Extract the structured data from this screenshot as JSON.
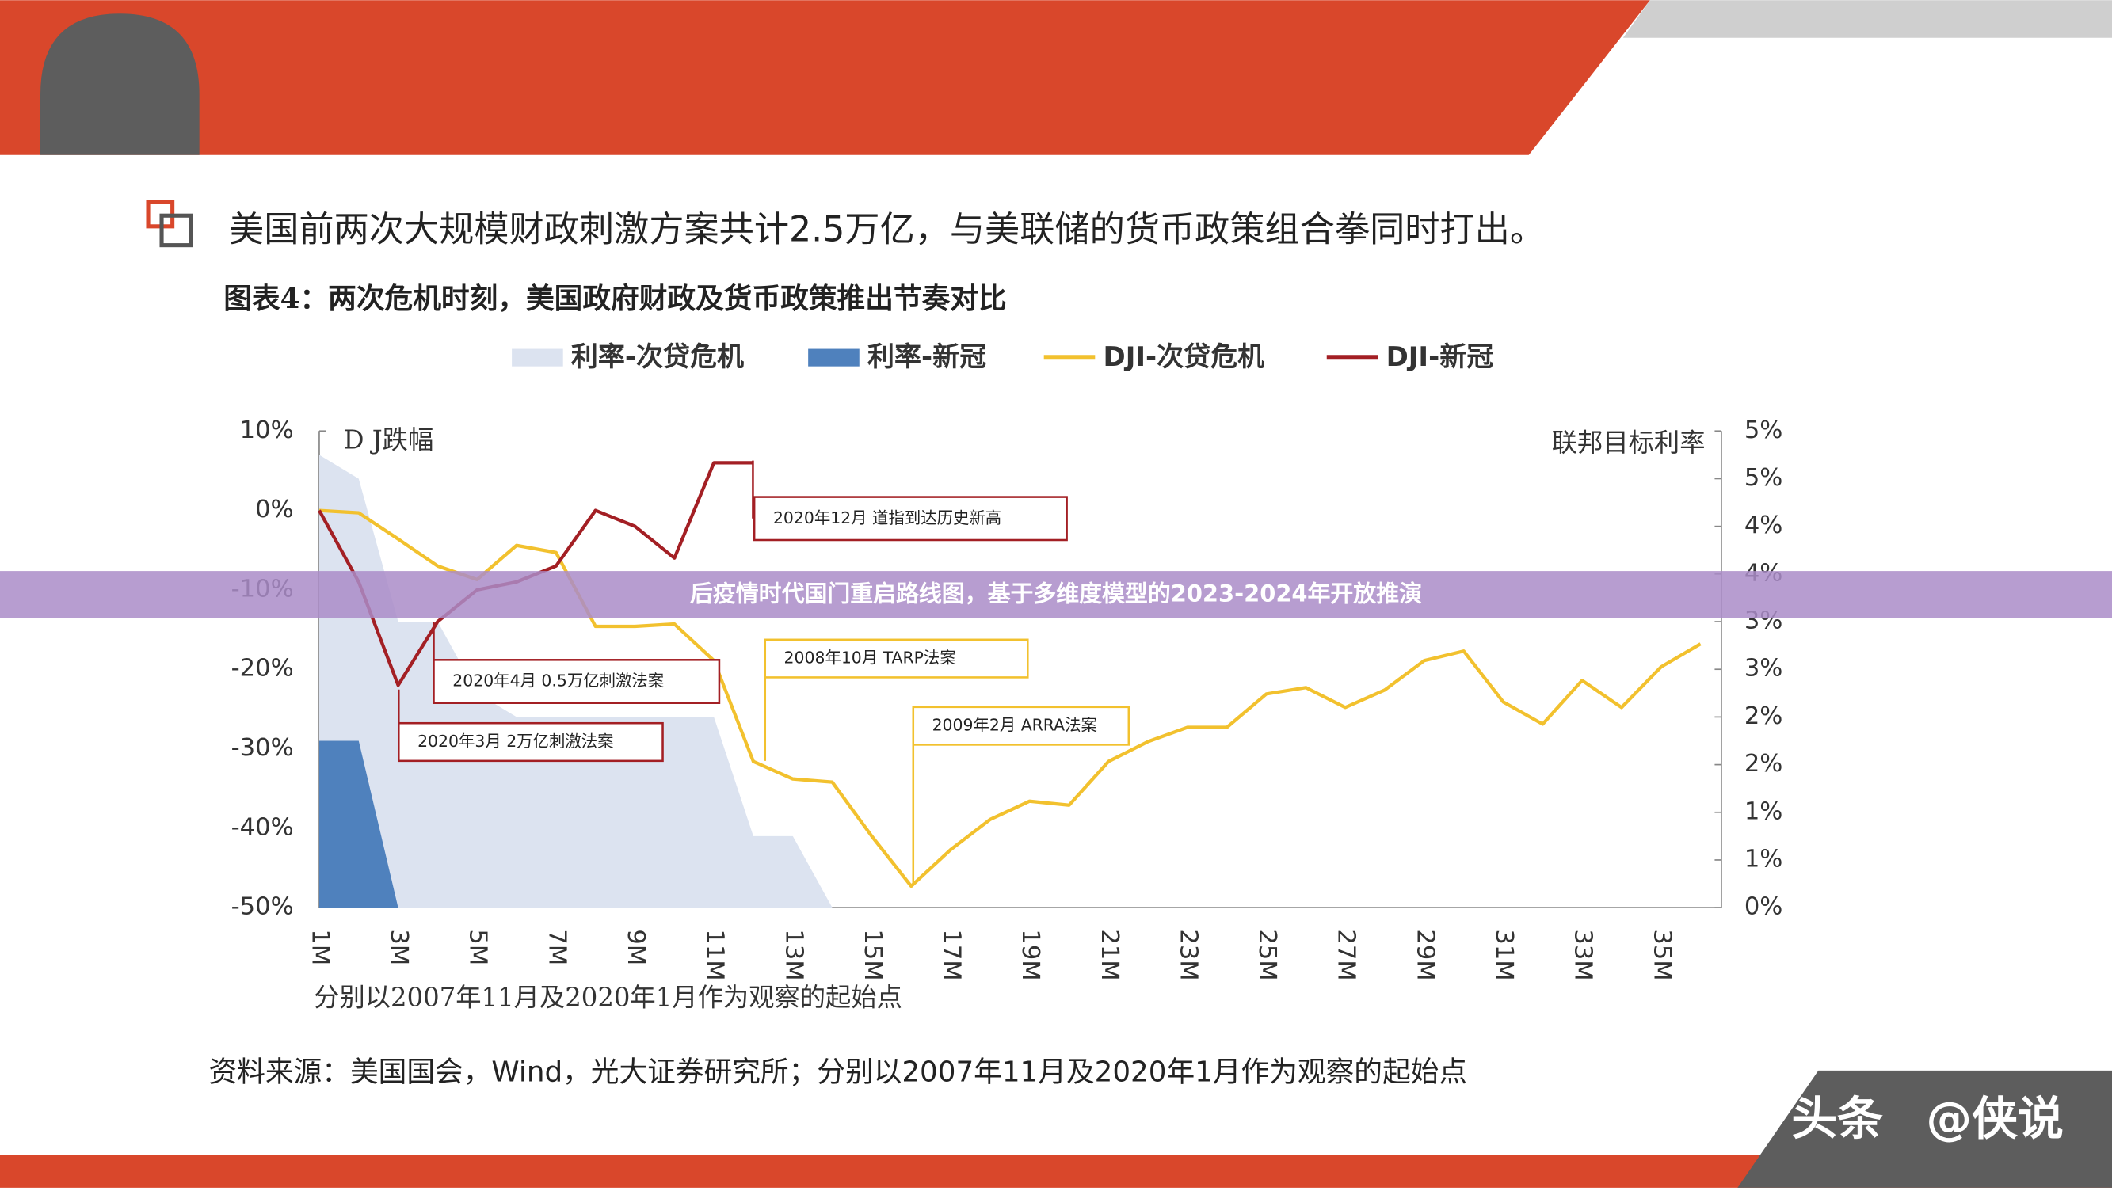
{
  "slide": {
    "heading": "美国前两次大规模财政刺激方案共计2.5万亿，与美联储的货币政策组合拳同时打出。",
    "source": "资料来源：美国国会，Wind，光大证券研究所；分别以2007年11月及2020年1月作为观察的起始点",
    "banner": "后疫情时代国门重启路线图，基于多维度模型的2023-2024年开放推演",
    "watermark": [
      "头条",
      "@侠说"
    ]
  },
  "chart_data": {
    "type": "line",
    "title": "图表4：两次危机时刻，美国政府财政及货币政策推出节奏对比",
    "ylabel": "D J跌幅",
    "y2label": "联邦目标利率",
    "note": "分别以2007年11月及2020年1月作为观察的起始点",
    "categories": [
      "1M",
      null,
      "3M",
      null,
      "5M",
      null,
      "7M",
      null,
      "9M",
      null,
      "11M",
      null,
      "13M",
      null,
      "15M",
      null,
      "17M",
      null,
      "19M",
      null,
      "21M",
      null,
      "23M",
      null,
      "25M",
      null,
      "27M",
      null,
      "29M",
      null,
      "31M",
      null,
      "33M",
      null,
      "35M",
      null
    ],
    "ylim": [
      -50,
      10
    ],
    "yticks": [
      {
        "value": 10,
        "label": "10%"
      },
      {
        "value": 0,
        "label": "0%"
      },
      {
        "value": -10,
        "label": "-10%"
      },
      {
        "value": -20,
        "label": "-20%"
      },
      {
        "value": -30,
        "label": "-30%"
      },
      {
        "value": -40,
        "label": "-40%"
      },
      {
        "value": -50,
        "label": "-50%"
      }
    ],
    "y2lim": [
      0,
      5
    ],
    "y2ticks": [
      {
        "value": 0,
        "label": "0%"
      },
      {
        "value": 0.5,
        "label": "1%"
      },
      {
        "value": 1,
        "label": "1%"
      },
      {
        "value": 1.5,
        "label": "2%"
      },
      {
        "value": 2,
        "label": "2%"
      },
      {
        "value": 2.5,
        "label": "3%"
      },
      {
        "value": 3,
        "label": "3%"
      },
      {
        "value": 3.5,
        "label": "4%"
      },
      {
        "value": 4,
        "label": "4%"
      },
      {
        "value": 4.5,
        "label": "5%"
      },
      {
        "value": 5,
        "label": "5%"
      }
    ],
    "series": [
      {
        "name": "利率-次贷危机",
        "color": "#dce3f0",
        "axis": "y2",
        "kind": "area",
        "values": [
          4.75,
          4.5,
          3.0,
          3.0,
          2.25,
          2.0,
          2.0,
          2.0,
          2.0,
          2.0,
          2.0,
          0.75,
          0.75,
          0,
          null,
          null,
          null,
          null,
          null,
          null,
          null,
          null,
          null,
          null,
          null,
          null,
          null,
          null,
          null,
          null,
          null,
          null,
          null,
          null,
          null,
          null
        ]
      },
      {
        "name": "利率-新冠",
        "color": "#4f81bd",
        "axis": "y2",
        "kind": "area",
        "values": [
          1.75,
          1.75,
          0,
          null,
          null,
          null,
          null,
          null,
          null,
          null,
          null,
          null,
          null,
          null,
          null,
          null,
          null,
          null,
          null,
          null,
          null,
          null,
          null,
          null,
          null,
          null,
          null,
          null,
          null,
          null,
          null,
          null,
          null,
          null,
          null,
          null
        ]
      },
      {
        "name": "DJI-次贷危机",
        "color": "#f2c12e",
        "kind": "line",
        "values": [
          0,
          -0.3,
          -3.6,
          -7,
          -8.7,
          -4.4,
          -5.3,
          -14.6,
          -14.6,
          -14.3,
          -18.9,
          -31.6,
          -33.8,
          -34.2,
          -41,
          -47.3,
          -42.7,
          -38.9,
          -36.6,
          -37.1,
          -31.6,
          -29.1,
          -27.3,
          -27.3,
          -23.1,
          -22.3,
          -24.8,
          -22.6,
          -18.9,
          -17.7,
          -24.1,
          -26.9,
          -21.4,
          -24.8,
          -19.7,
          -16.8
        ]
      },
      {
        "name": "DJI-新冠",
        "color": "#a31f24",
        "kind": "line",
        "values": [
          0,
          -9,
          -22,
          -14,
          -10,
          -9,
          -7,
          0,
          -2,
          -6,
          6,
          6,
          null,
          null,
          null,
          null,
          null,
          null,
          null,
          null,
          null,
          null,
          null,
          null,
          null,
          null,
          null,
          null,
          null,
          null,
          null,
          null,
          null,
          null,
          null,
          null
        ]
      }
    ],
    "annotations": [
      {
        "text": "2020年12月  道指到达历史新高",
        "series": 3
      },
      {
        "text": "2008年10月  TARP法案",
        "series": 2
      },
      {
        "text": "2009年2月  ARRA法案",
        "series": 2
      },
      {
        "text": "2020年4月  0.5万亿刺激法案",
        "series": 3
      },
      {
        "text": "2020年3月  2万亿刺激法案",
        "series": 3
      }
    ]
  }
}
